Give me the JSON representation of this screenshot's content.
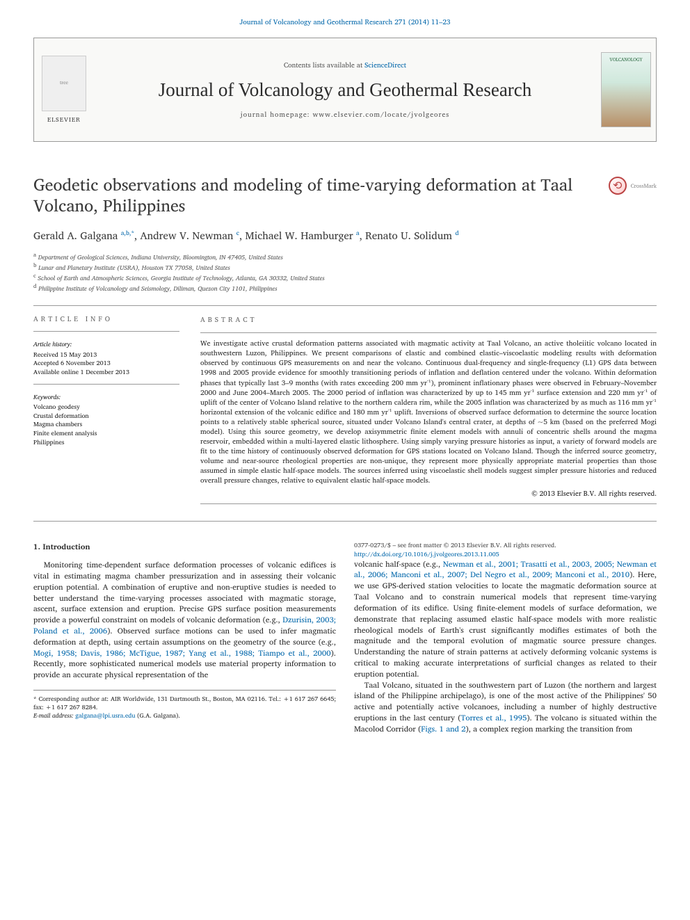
{
  "header": {
    "topLink": "Journal of Volcanology and Geothermal Research 271 (2014) 11–23",
    "contentsPrefix": "Contents lists available at ",
    "contentsLink": "ScienceDirect",
    "journalName": "Journal of Volcanology and Geothermal Research",
    "homepagePrefix": "journal homepage: ",
    "homepage": "www.elsevier.com/locate/jvolgeores",
    "elsevier": "ELSEVIER",
    "coverText": "VOLCANOLOGY",
    "crossmark": "CrossMark",
    "crossmarkGlyph": "⟲"
  },
  "article": {
    "title": "Geodetic observations and modeling of time-varying deformation at Taal Volcano, Philippines",
    "authors_html": "Gerald A. Galgana <a href='#'><sup>a,b,</sup></a><sup>*</sup>, Andrew V. Newman <a href='#'><sup>c</sup></a>, Michael W. Hamburger <a href='#'><sup>a</sup></a>, Renato U. Solidum <a href='#'><sup>d</sup></a>",
    "affiliations": [
      "a  Department of Geological Sciences, Indiana University, Bloomington, IN 47405, United States",
      "b  Lunar and Planetary Institute (USRA), Houston TX 77058, United States",
      "c  School of Earth and Atmospheric Sciences, Georgia Institute of Technology, Atlanta, GA 30332, United States",
      "d  Philippine Institute of Volcanology and Seismology, Diliman, Quezon City 1101, Philippines"
    ]
  },
  "info": {
    "heading": "ARTICLE INFO",
    "historyLabel": "Article history:",
    "history": [
      "Received 15 May 2013",
      "Accepted 6 November 2013",
      "Available online 1 December 2013"
    ],
    "keywordsLabel": "Keywords:",
    "keywords": [
      "Volcano geodesy",
      "Crustal deformation",
      "Magma chambers",
      "Finite element analysis",
      "Philippines"
    ]
  },
  "abstract": {
    "heading": "ABSTRACT",
    "text": "We investigate active crustal deformation patterns associated with magmatic activity at Taal Volcano, an active tholeiitic volcano located in southwestern Luzon, Philippines. We present comparisons of elastic and combined elastic–viscoelastic modeling results with deformation observed by continuous GPS measurements on and near the volcano. Continuous dual-frequency and single-frequency (L1) GPS data between 1998 and 2005 provide evidence for smoothly transitioning periods of inflation and deflation centered under the volcano. Within deformation phases that typically last 3–9 months (with rates exceeding 200 mm yr⁻¹), prominent inflationary phases were observed in February–November 2000 and June 2004–March 2005. The 2000 period of inflation was characterized by up to 145 mm yr⁻¹ surface extension and 220 mm yr⁻¹ of uplift of the center of Volcano Island relative to the northern caldera rim, while the 2005 inflation was characterized by as much as 116 mm yr⁻¹ horizontal extension of the volcanic edifice and 180 mm yr⁻¹ uplift. Inversions of observed surface deformation to determine the source location points to a relatively stable spherical source, situated under Volcano Island's central crater, at depths of ~5 km (based on the preferred Mogi model). Using this source geometry, we develop axisymmetric finite element models with annuli of concentric shells around the magma reservoir, embedded within a multi-layered elastic lithosphere. Using simply varying pressure histories as input, a variety of forward models are fit to the time history of continuously observed deformation for GPS stations located on Volcano Island. Though the inferred source geometry, volume and near-source rheological properties are non-unique, they represent more physically appropriate material properties than those assumed in simple elastic half-space models. The sources inferred using viscoelastic shell models suggest simpler pressure histories and reduced overall pressure changes, relative to equivalent elastic half-space models.",
    "copyright": "© 2013 Elsevier B.V. All rights reserved."
  },
  "body": {
    "sectionHeading": "1. Introduction",
    "p1a": "Monitoring time-dependent surface deformation processes of volcanic edifices is vital in estimating magma chamber pressurization and in assessing their volcanic eruption potential. A combination of eruptive and non-eruptive studies is needed to better understand the time-varying processes associated with magmatic storage, ascent, surface extension and eruption. Precise GPS surface position measurements provide a powerful constraint on models of volcanic deformation (e.g., ",
    "p1link1": "Dzurisin, 2003; Poland et al., 2006",
    "p1b": "). Observed surface motions can be used to infer magmatic deformation at depth, using certain assumptions on the geometry of the source (e.g., ",
    "p1link2": "Mogi, 1958; Davis, 1986; McTigue, 1987; Yang et al., 1988; Tiampo et al., 2000",
    "p1c": "). Recently, more sophisticated numerical models use material property information to provide an accurate physical representation of the ",
    "p2a": "volcanic half-space (e.g., ",
    "p2link1": "Newman et al., 2001; Trasatti et al., 2003, 2005; Newman et al., 2006; Manconi et al., 2007; Del Negro et al., 2009; Manconi et al., 2010",
    "p2b": "). Here, we use GPS-derived station velocities to locate the magmatic deformation source at Taal Volcano and to constrain numerical models that represent time-varying deformation of its edifice. Using finite-element models of surface deformation, we demonstrate that replacing assumed elastic half-space models with more realistic rheological models of Earth's crust significantly modifies estimates of both the magnitude and the temporal evolution of magmatic source pressure changes. Understanding the nature of strain patterns at actively deforming volcanic systems is critical to making accurate interpretations of surficial changes as related to their eruption potential.",
    "p3a": "Taal Volcano, situated in the southwestern part of Luzon (the northern and largest island of the Philippine archipelago), is one of the most active of the Philippines' 50 active and potentially active volcanoes, including a number of highly destructive eruptions in the last century (",
    "p3link1": "Torres et al., 1995",
    "p3b": "). The volcano is situated within the Macolod Corridor (",
    "p3link2": "Figs. 1 and 2",
    "p3c": "), a complex region marking the transition from"
  },
  "footnotes": {
    "corr": "* Corresponding author at: AIR Worldwide, 131 Dartmouth St., Boston, MA 02116. Tel.: +1 617 267 6645; fax: +1 617 267 8284.",
    "emailLabel": "E-mail address: ",
    "email": "galgana@lpi.usra.edu",
    "emailSuffix": " (G.A. Galgana)."
  },
  "bottom": {
    "issn": "0377-0273/$ – see front matter © 2013 Elsevier B.V. All rights reserved.",
    "doi": "http://dx.doi.org/10.1016/j.jvolgeores.2013.11.005"
  },
  "colors": {
    "link": "#0066aa",
    "text": "#2a2a2a",
    "rule": "#999999"
  }
}
